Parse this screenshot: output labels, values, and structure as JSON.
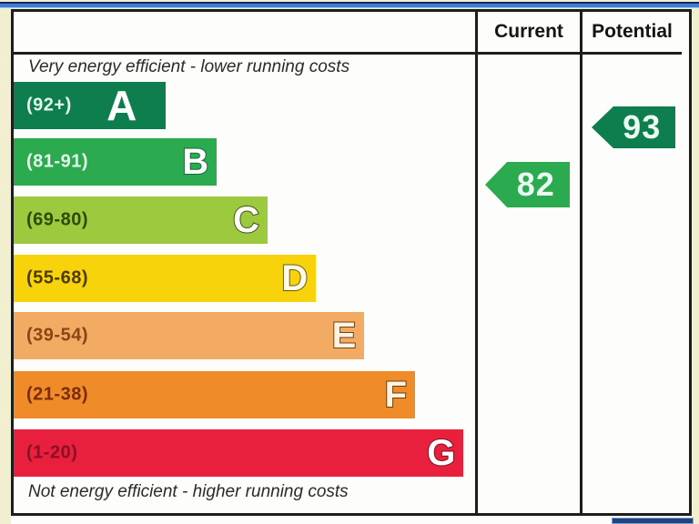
{
  "page": {
    "background_color": "#f2efd0",
    "top_bar_color": "#3c7fd6",
    "bottom_partial_bar_color": "#24427e"
  },
  "table": {
    "headers": {
      "current": "Current",
      "potential": "Potential"
    }
  },
  "captions": {
    "top": "Very energy efficient - lower running costs",
    "bottom": "Not energy efficient - higher running costs"
  },
  "chart_data": {
    "type": "bar",
    "kind": "energy-efficiency-rating",
    "orientation": "horizontal",
    "bands": [
      {
        "letter": "A",
        "range": "(92+)",
        "score_min": 92,
        "score_max": 100,
        "color": "#0e7e4f",
        "label_color": "#e3f6ea",
        "letter_color": "#ffffff",
        "letter_outline": "#0e7e4f",
        "width_pct": 33
      },
      {
        "letter": "B",
        "range": "(81-91)",
        "score_min": 81,
        "score_max": 91,
        "color": "#2caa50",
        "label_color": "#e3f6ea",
        "letter_color": "#ffffff",
        "letter_outline": "#17683a",
        "width_pct": 44
      },
      {
        "letter": "C",
        "range": "(69-80)",
        "score_min": 69,
        "score_max": 80,
        "color": "#9cc93d",
        "label_color": "#2e4a09",
        "letter_color": "#ffffff",
        "letter_outline": "#42550f",
        "width_pct": 55
      },
      {
        "letter": "D",
        "range": "(55-68)",
        "score_min": 55,
        "score_max": 68,
        "color": "#f8d30c",
        "label_color": "#4a3c02",
        "letter_color": "#fdfbe8",
        "letter_outline": "#6b5a10",
        "width_pct": 65.5
      },
      {
        "letter": "E",
        "range": "(39-54)",
        "score_min": 39,
        "score_max": 54,
        "color": "#f3ab64",
        "label_color": "#8a4513",
        "letter_color": "#fdf3e0",
        "letter_outline": "#6e4318",
        "width_pct": 76
      },
      {
        "letter": "F",
        "range": "(21-38)",
        "score_min": 21,
        "score_max": 38,
        "color": "#ef8b28",
        "label_color": "#7a2c0c",
        "letter_color": "#fdf3e0",
        "letter_outline": "#6e3c0c",
        "width_pct": 87
      },
      {
        "letter": "G",
        "range": "(1-20)",
        "score_min": 1,
        "score_max": 20,
        "color": "#e81f3d",
        "label_color": "#8c0f26",
        "letter_color": "#ffffff",
        "letter_outline": "#7e1124",
        "width_pct": 97.5
      }
    ],
    "current": {
      "value": "82",
      "band": "B",
      "color": "#2caa50"
    },
    "potential": {
      "value": "93",
      "band": "A",
      "color": "#0e7e4f"
    }
  }
}
